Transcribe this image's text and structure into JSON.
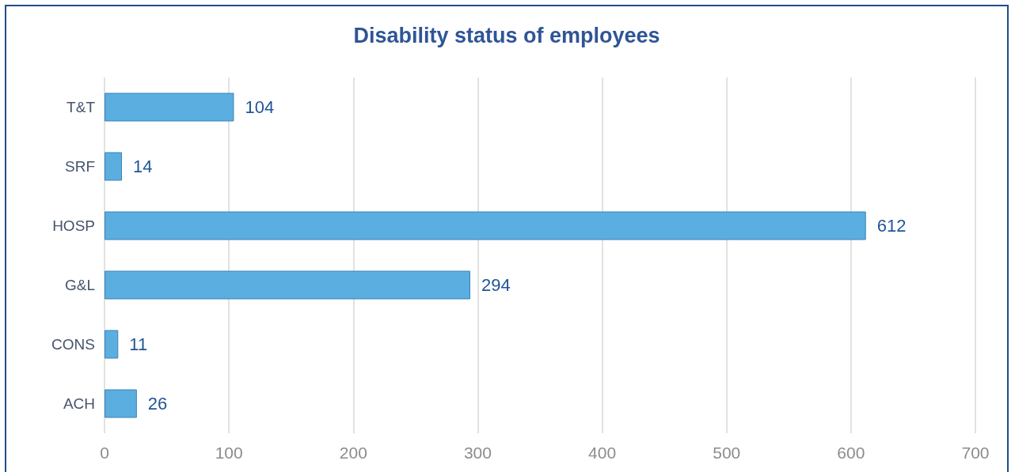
{
  "chart_data": {
    "type": "bar",
    "title": "Disability status of employees",
    "orientation": "horizontal",
    "categories": [
      "T&T",
      "SRF",
      "HOSP",
      "G&L",
      "CONS",
      "ACH"
    ],
    "values": [
      104,
      14,
      612,
      294,
      11,
      26
    ],
    "color": "#5aaee0",
    "xlim": [
      0,
      700
    ],
    "xticks": [
      0,
      100,
      200,
      300,
      400,
      500,
      600,
      700
    ],
    "grid": "x",
    "data_labels": true
  }
}
